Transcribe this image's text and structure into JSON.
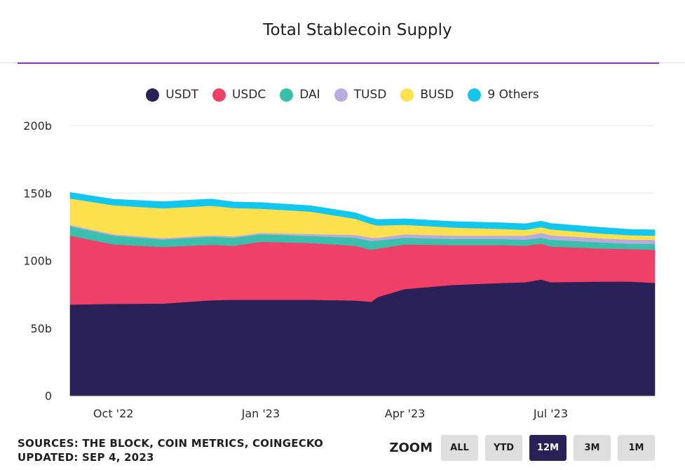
{
  "header": {
    "title": "Total Stablecoin Supply"
  },
  "footer": {
    "sources": "SOURCES: THE BLOCK, COIN METRICS, COINGECKO",
    "updated": "UPDATED: SEP 4, 2023"
  },
  "zoom": {
    "label": "ZOOM",
    "options": [
      "ALL",
      "YTD",
      "12M",
      "3M",
      "1M"
    ],
    "selected": "12M"
  },
  "colors": {
    "title_accent": "#8f2cd6",
    "grid": "#e9e9e9",
    "zoom_active": "#2a2159",
    "zoom_inactive": "#dedede"
  },
  "chart_data": {
    "type": "area",
    "stacked": true,
    "title": "Total Stablecoin Supply",
    "xlabel": "",
    "ylabel": "",
    "y_unit_suffix": "b",
    "ylim": [
      0,
      200
    ],
    "yticks": [
      0,
      50,
      100,
      150,
      200
    ],
    "ytick_labels": [
      "0",
      "50b",
      "100b",
      "150b",
      "200b"
    ],
    "xlim": [
      "2022-09-04",
      "2023-09-04"
    ],
    "xticks": [
      "2022-10-01",
      "2023-01-01",
      "2023-04-01",
      "2023-07-01"
    ],
    "xtick_labels": [
      "Oct '22",
      "Jan '23",
      "Apr '23",
      "Jul '23"
    ],
    "grid": true,
    "legend_position": "top-center",
    "x": [
      "2022-09-04",
      "2022-10-01",
      "2022-11-01",
      "2022-12-01",
      "2022-12-15",
      "2023-01-01",
      "2023-02-01",
      "2023-03-01",
      "2023-03-11",
      "2023-03-15",
      "2023-04-01",
      "2023-05-01",
      "2023-06-01",
      "2023-06-15",
      "2023-06-25",
      "2023-07-01",
      "2023-08-01",
      "2023-08-20",
      "2023-09-04"
    ],
    "series": [
      {
        "name": "USDT",
        "color": "#2a2159",
        "values": [
          67.5,
          68,
          68.2,
          70.7,
          71,
          71,
          71,
          70.5,
          69.5,
          73,
          79,
          82,
          83.5,
          84,
          86,
          84,
          84.5,
          84.5,
          83.5
        ]
      },
      {
        "name": "USDC",
        "color": "#ef4068",
        "values": [
          51,
          44,
          42,
          41,
          40,
          43,
          42,
          40.5,
          38.5,
          36,
          33,
          29.5,
          28,
          27,
          26.5,
          26.5,
          24.5,
          24,
          24.5
        ]
      },
      {
        "name": "DAI",
        "color": "#3bbfad",
        "values": [
          7,
          6.5,
          5.5,
          6,
          6,
          5.5,
          5.3,
          6,
          6.5,
          6,
          5,
          4.5,
          4.5,
          4.5,
          4.5,
          5,
          4.5,
          4,
          4.5
        ]
      },
      {
        "name": "TUSD",
        "color": "#b8acdf",
        "values": [
          1,
          1,
          1,
          1,
          1,
          1,
          1.5,
          2,
          2.5,
          2,
          2.5,
          2.5,
          2.5,
          3,
          3.5,
          3.3,
          3,
          3,
          3
        ]
      },
      {
        "name": "BUSD",
        "color": "#fde04e",
        "values": [
          19.5,
          21.5,
          22,
          22,
          21,
          18,
          16.5,
          12,
          10,
          9,
          7,
          6,
          5,
          4.3,
          4.3,
          4.3,
          3.6,
          3.3,
          3
        ]
      },
      {
        "name": "9 Others",
        "color": "#12c7ee",
        "values": [
          4.5,
          4.5,
          5,
          5,
          4.5,
          4.5,
          4.5,
          4.5,
          4.5,
          4.5,
          4.5,
          4.5,
          4.5,
          4.5,
          4.5,
          4.5,
          4.5,
          4.3,
          4.3
        ]
      }
    ]
  }
}
